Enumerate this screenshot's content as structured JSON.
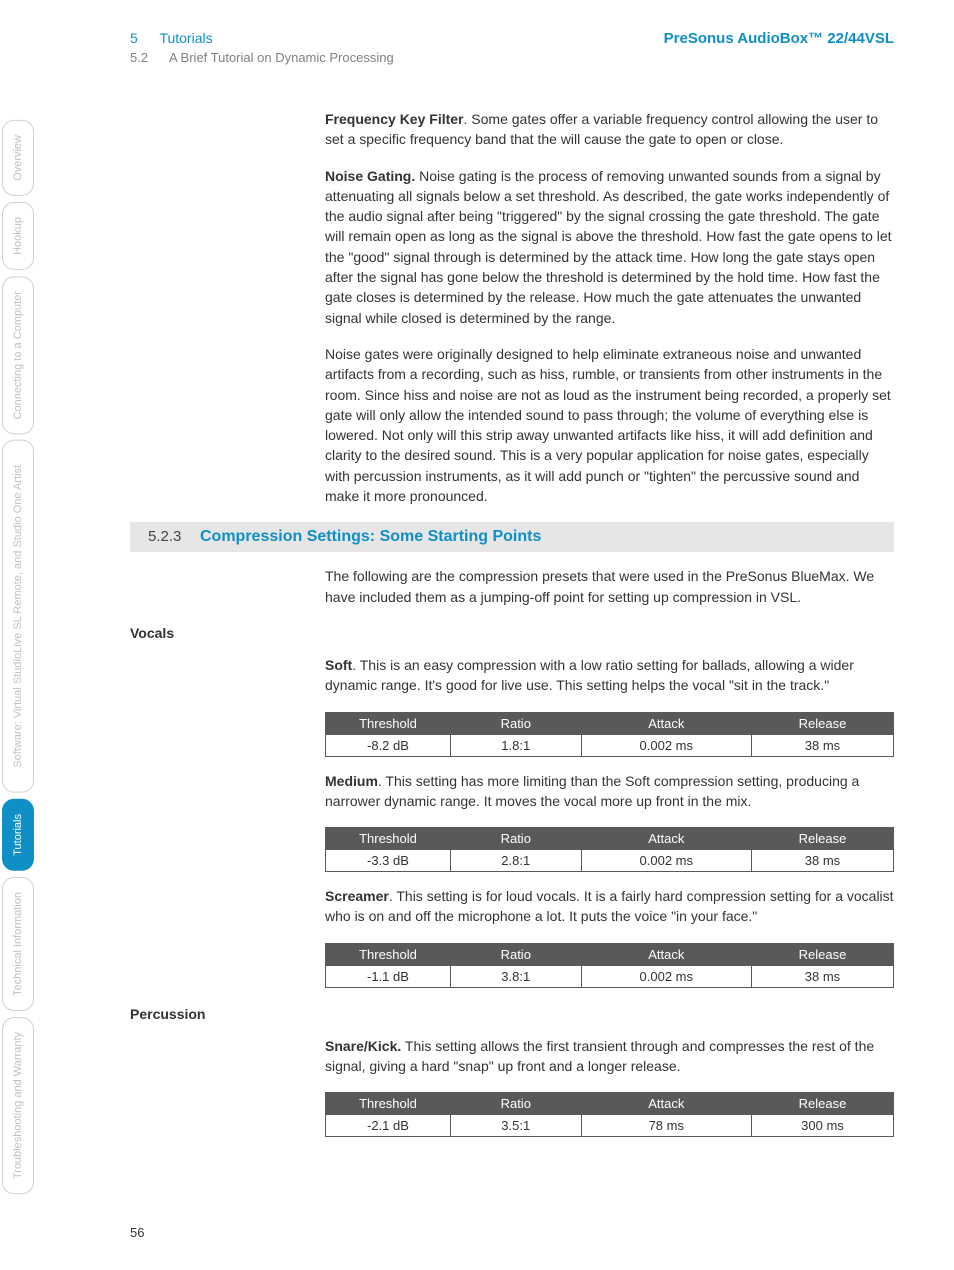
{
  "header": {
    "chapter_num": "5",
    "chapter_title": "Tutorials",
    "subsection_num": "5.2",
    "subsection_title": "A Brief Tutorial on Dynamic Processing",
    "product": "PreSonus AudioBox™ 22/44VSL"
  },
  "tabs": [
    {
      "label": "Overview",
      "active": false
    },
    {
      "label": "Hookup",
      "active": false
    },
    {
      "label": "Connecting to a Computer",
      "active": false
    },
    {
      "label": "Software: Virtual StudioLive SL Remote, and Studio One Artist",
      "active": false
    },
    {
      "label": "Tutorials",
      "active": true
    },
    {
      "label": "Technical Information",
      "active": false
    },
    {
      "label": "Troubleshooting and Warranty",
      "active": false
    }
  ],
  "para1": {
    "bold": "Frequency Key Filter",
    "rest": ". Some gates offer a variable frequency control allowing the user to set a specific frequency band that the will cause the gate to open or close."
  },
  "para2": {
    "bold": "Noise Gating.",
    "rest": " Noise gating is the process of removing unwanted sounds from a signal by attenuating all signals below a set threshold. As described, the gate works independently of the audio signal after being \"triggered\" by the signal crossing the gate threshold. The gate will remain open as long as the signal is above the threshold. How fast the gate opens to let the \"good\" signal through is determined by the attack time. How long the gate stays open after the signal has gone below the threshold is determined by the hold time. How fast the gate closes is determined by the release. How much the gate attenuates the unwanted signal while closed is determined by the range."
  },
  "para3": "Noise gates were originally designed to help eliminate extraneous noise and unwanted artifacts from a recording, such as hiss, rumble, or transients from other instruments in the room. Since hiss and noise are not as loud as the instrument being recorded, a properly set gate will only allow the intended sound to pass through; the volume of everything else is lowered. Not only will this strip away unwanted artifacts like hiss, it will add definition and clarity to the desired sound. This is a very popular application for noise gates, especially with percussion instruments, as it will add punch or \"tighten\" the percussive sound and make it more pronounced.",
  "section": {
    "num": "5.2.3",
    "title": "Compression Settings: Some Starting Points"
  },
  "section_intro": "The following are the compression presets that were used in the PreSonus BlueMax. We have included them as a jumping-off point for setting up compression in VSL.",
  "vocals_label": "Vocals",
  "soft": {
    "bold": "Soft",
    "rest": ". This is an easy compression with a low ratio setting for ballads, allowing a wider dynamic range. It's good for live use. This setting helps the vocal \"sit in the track.\""
  },
  "medium": {
    "bold": "Medium",
    "rest": ". This setting has more limiting than the Soft compression setting, producing a narrower dynamic range. It moves the vocal more up front in the mix."
  },
  "screamer": {
    "bold": "Screamer",
    "rest": ". This setting is for loud vocals. It is a fairly hard compression setting for a vocalist who is on and off the microphone a lot. It puts the voice \"in your face.\""
  },
  "percussion_label": "Percussion",
  "snare": {
    "bold": "Snare/Kick.",
    "rest": " This setting allows the first transient through and compresses the rest of the signal, giving a hard \"snap\" up front and a longer release."
  },
  "table_headers": {
    "c1": "Threshold",
    "c2": "Ratio",
    "c3": "Attack",
    "c4": "Release"
  },
  "table_soft": {
    "c1": "-8.2 dB",
    "c2": "1.8:1",
    "c3": "0.002 ms",
    "c4": "38 ms"
  },
  "table_medium": {
    "c1": "-3.3 dB",
    "c2": "2.8:1",
    "c3": "0.002 ms",
    "c4": "38 ms"
  },
  "table_scream": {
    "c1": "-1.1 dB",
    "c2": "3.8:1",
    "c3": "0.002 ms",
    "c4": "38 ms"
  },
  "table_snare": {
    "c1": "-2.1 dB",
    "c2": "3.5:1",
    "c3": "78 ms",
    "c4": "300 ms"
  },
  "page_number": "56"
}
